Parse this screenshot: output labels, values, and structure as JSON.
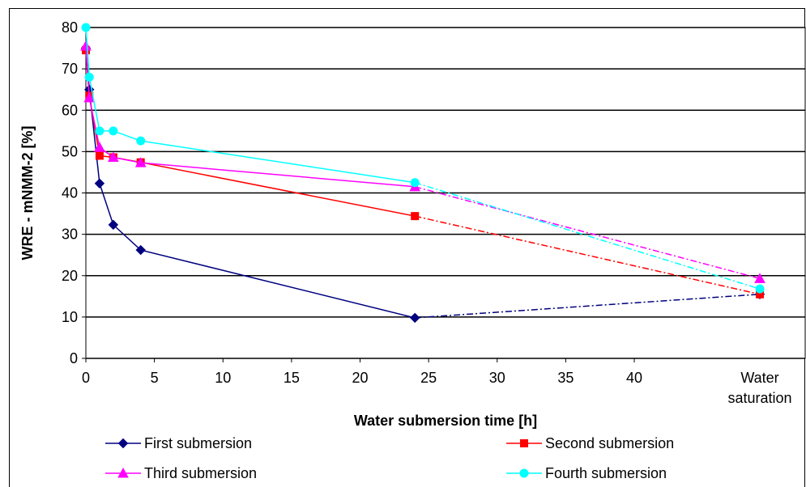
{
  "chart_data": {
    "type": "line",
    "xlabel": "Water submersion time [h]",
    "ylabel": "WRE - mNMM-2 [%]",
    "ylim": [
      0,
      80
    ],
    "xlim": [
      0,
      45
    ],
    "y_ticks": [
      "0",
      "10",
      "20",
      "30",
      "40",
      "50",
      "60",
      "70",
      "80"
    ],
    "x_ticks": [
      "0",
      "5",
      "10",
      "15",
      "20",
      "25",
      "30",
      "35",
      "40"
    ],
    "x_extra_category": [
      "Water",
      "saturation"
    ],
    "grid": "horizontal",
    "legend_position": "bottom",
    "series": [
      {
        "name": "First submersion",
        "color": "#000080",
        "marker": "diamond",
        "x": [
          0,
          0.25,
          1,
          2,
          4,
          24
        ],
        "values": [
          75,
          65,
          42.3,
          32.3,
          26.2,
          9.8
        ],
        "saturation": 15.5
      },
      {
        "name": "Second submersion",
        "color": "#ff0000",
        "marker": "square",
        "x": [
          0,
          0.25,
          1,
          2,
          4,
          24
        ],
        "values": [
          74.5,
          63.5,
          49,
          48.6,
          47.4,
          34.4
        ],
        "saturation": 15.5
      },
      {
        "name": "Third submersion",
        "color": "#ff00ff",
        "marker": "triangle",
        "x": [
          0,
          0.25,
          1,
          2,
          4,
          24
        ],
        "values": [
          75.5,
          63,
          51,
          48.6,
          47.3,
          41.5
        ],
        "saturation": 19.3
      },
      {
        "name": "Fourth submersion",
        "color": "#00ffff",
        "marker": "circle",
        "x": [
          0,
          0.25,
          1,
          2,
          4,
          24
        ],
        "values": [
          80,
          68,
          55,
          55,
          52.6,
          42.5
        ],
        "saturation": 16.8
      }
    ]
  }
}
